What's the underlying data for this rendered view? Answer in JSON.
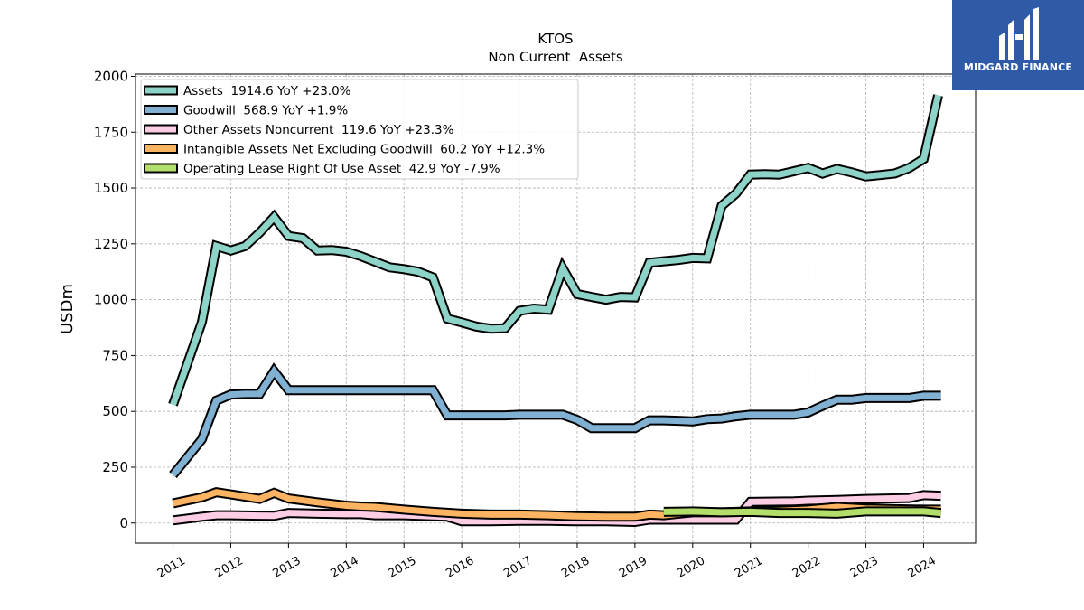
{
  "chart_data": {
    "type": "line",
    "title": "KTOS",
    "subtitle": "Non Current  Assets",
    "xlabel": "",
    "ylabel": "USDm",
    "xlim": [
      2010.35,
      2024.9
    ],
    "ylim": [
      -90,
      2010
    ],
    "yticks": [
      0,
      250,
      500,
      750,
      1000,
      1250,
      1500,
      1750,
      2000
    ],
    "xticks": [
      "2011",
      "2012",
      "2013",
      "2014",
      "2015",
      "2016",
      "2017",
      "2018",
      "2019",
      "2020",
      "2021",
      "2022",
      "2023",
      "2024"
    ],
    "grid": true,
    "legend_position": "top-left",
    "series": [
      {
        "name": "Assets",
        "legend_label": "Assets  1914.6 YoY +23.0%",
        "color": "#8dd3c7",
        "points": [
          [
            2011.0,
            530
          ],
          [
            2011.5,
            900
          ],
          [
            2011.75,
            1240
          ],
          [
            2012.0,
            1220
          ],
          [
            2012.25,
            1240
          ],
          [
            2012.5,
            1300
          ],
          [
            2012.75,
            1370
          ],
          [
            2013.0,
            1285
          ],
          [
            2013.25,
            1275
          ],
          [
            2013.5,
            1220
          ],
          [
            2013.75,
            1222
          ],
          [
            2014.0,
            1215
          ],
          [
            2014.25,
            1195
          ],
          [
            2014.5,
            1170
          ],
          [
            2014.75,
            1145
          ],
          [
            2015.0,
            1137
          ],
          [
            2015.25,
            1125
          ],
          [
            2015.5,
            1100
          ],
          [
            2015.75,
            915
          ],
          [
            2016.0,
            898
          ],
          [
            2016.25,
            880
          ],
          [
            2016.5,
            870
          ],
          [
            2016.75,
            872
          ],
          [
            2017.0,
            950
          ],
          [
            2017.25,
            960
          ],
          [
            2017.5,
            955
          ],
          [
            2017.75,
            1140
          ],
          [
            2018.0,
            1025
          ],
          [
            2018.25,
            1012
          ],
          [
            2018.5,
            1000
          ],
          [
            2018.75,
            1012
          ],
          [
            2019.0,
            1010
          ],
          [
            2019.25,
            1165
          ],
          [
            2019.5,
            1172
          ],
          [
            2019.75,
            1178
          ],
          [
            2020.0,
            1187
          ],
          [
            2020.25,
            1185
          ],
          [
            2020.5,
            1420
          ],
          [
            2020.75,
            1475
          ],
          [
            2021.0,
            1560
          ],
          [
            2021.25,
            1562
          ],
          [
            2021.5,
            1560
          ],
          [
            2021.75,
            1575
          ],
          [
            2022.0,
            1590
          ],
          [
            2022.25,
            1565
          ],
          [
            2022.5,
            1585
          ],
          [
            2022.75,
            1570
          ],
          [
            2023.0,
            1552
          ],
          [
            2023.25,
            1558
          ],
          [
            2023.5,
            1565
          ],
          [
            2023.75,
            1590
          ],
          [
            2024.0,
            1630
          ],
          [
            2024.25,
            1915
          ]
        ]
      },
      {
        "name": "Goodwill",
        "legend_label": "Goodwill  568.9 YoY +1.9%",
        "color": "#80b1d3",
        "points": [
          [
            2011.0,
            215
          ],
          [
            2011.5,
            375
          ],
          [
            2011.75,
            548
          ],
          [
            2012.0,
            575
          ],
          [
            2012.25,
            578
          ],
          [
            2012.5,
            578
          ],
          [
            2012.75,
            680
          ],
          [
            2013.0,
            595
          ],
          [
            2013.25,
            595
          ],
          [
            2013.5,
            595
          ],
          [
            2013.75,
            595
          ],
          [
            2014.0,
            595
          ],
          [
            2014.25,
            595
          ],
          [
            2014.5,
            595
          ],
          [
            2014.75,
            595
          ],
          [
            2015.0,
            595
          ],
          [
            2015.25,
            595
          ],
          [
            2015.5,
            595
          ],
          [
            2015.75,
            482
          ],
          [
            2016.0,
            482
          ],
          [
            2016.25,
            482
          ],
          [
            2016.5,
            482
          ],
          [
            2016.75,
            482
          ],
          [
            2017.0,
            485
          ],
          [
            2017.25,
            485
          ],
          [
            2017.5,
            485
          ],
          [
            2017.75,
            485
          ],
          [
            2018.0,
            462
          ],
          [
            2018.25,
            425
          ],
          [
            2018.5,
            425
          ],
          [
            2018.75,
            425
          ],
          [
            2019.0,
            425
          ],
          [
            2019.25,
            460
          ],
          [
            2019.5,
            460
          ],
          [
            2019.75,
            458
          ],
          [
            2020.0,
            455
          ],
          [
            2020.25,
            465
          ],
          [
            2020.5,
            468
          ],
          [
            2020.75,
            478
          ],
          [
            2021.0,
            485
          ],
          [
            2021.25,
            485
          ],
          [
            2021.5,
            485
          ],
          [
            2021.75,
            485
          ],
          [
            2022.0,
            495
          ],
          [
            2022.25,
            525
          ],
          [
            2022.5,
            552
          ],
          [
            2022.75,
            552
          ],
          [
            2023.0,
            560
          ],
          [
            2023.25,
            560
          ],
          [
            2023.5,
            560
          ],
          [
            2023.75,
            560
          ],
          [
            2024.0,
            570
          ],
          [
            2024.3,
            570
          ]
        ]
      },
      {
        "name": "Other Assets Noncurrent",
        "legend_label": "Other Assets Noncurrent  119.6 YoY +23.3%",
        "color": "#fccde5",
        "points": [
          [
            2011.0,
            12
          ],
          [
            2011.5,
            28
          ],
          [
            2011.75,
            35
          ],
          [
            2012.0,
            35
          ],
          [
            2012.5,
            33
          ],
          [
            2012.75,
            32
          ],
          [
            2013.0,
            45
          ],
          [
            2013.5,
            42
          ],
          [
            2014.0,
            40
          ],
          [
            2014.25,
            40
          ],
          [
            2014.5,
            35
          ],
          [
            2015.0,
            35
          ],
          [
            2015.5,
            30
          ],
          [
            2015.75,
            28
          ],
          [
            2016.0,
            8
          ],
          [
            2016.5,
            8
          ],
          [
            2017.0,
            10
          ],
          [
            2017.5,
            10
          ],
          [
            2018.0,
            8
          ],
          [
            2018.5,
            8
          ],
          [
            2019.0,
            5
          ],
          [
            2019.25,
            15
          ],
          [
            2019.5,
            15
          ],
          [
            2020.0,
            15
          ],
          [
            2020.5,
            15
          ],
          [
            2020.75,
            15
          ],
          [
            2021.0,
            95
          ],
          [
            2021.75,
            97
          ],
          [
            2022.0,
            100
          ],
          [
            2022.5,
            103
          ],
          [
            2023.0,
            108
          ],
          [
            2023.75,
            112
          ],
          [
            2024.0,
            125
          ],
          [
            2024.3,
            122
          ]
        ]
      },
      {
        "name": "Intangible Assets Net Excluding Goodwill",
        "legend_label": "Intangible Assets Net Excluding Goodwill  60.2 YoY +12.3%",
        "color": "#fdb462",
        "points": [
          [
            2011.0,
            88
          ],
          [
            2011.5,
            115
          ],
          [
            2011.75,
            138
          ],
          [
            2012.0,
            128
          ],
          [
            2012.25,
            118
          ],
          [
            2012.5,
            108
          ],
          [
            2012.75,
            135
          ],
          [
            2013.0,
            110
          ],
          [
            2013.5,
            93
          ],
          [
            2014.0,
            78
          ],
          [
            2014.25,
            74
          ],
          [
            2014.5,
            72
          ],
          [
            2015.0,
            60
          ],
          [
            2015.5,
            50
          ],
          [
            2016.0,
            42
          ],
          [
            2016.5,
            38
          ],
          [
            2017.0,
            38
          ],
          [
            2017.5,
            35
          ],
          [
            2018.0,
            30
          ],
          [
            2018.5,
            28
          ],
          [
            2019.0,
            28
          ],
          [
            2019.25,
            38
          ],
          [
            2019.5,
            35
          ],
          [
            2020.0,
            48
          ],
          [
            2020.5,
            48
          ],
          [
            2021.0,
            52
          ],
          [
            2021.5,
            55
          ],
          [
            2022.0,
            60
          ],
          [
            2022.5,
            72
          ],
          [
            2023.0,
            65
          ],
          [
            2023.5,
            62
          ],
          [
            2024.0,
            60
          ],
          [
            2024.3,
            60
          ]
        ]
      },
      {
        "name": "Operating Lease Right Of Use Asset",
        "legend_label": "Operating Lease Right Of Use Asset  42.9 YoY -7.9%",
        "color": "#b3de69",
        "points": [
          [
            2019.5,
            50
          ],
          [
            2020.0,
            52
          ],
          [
            2020.5,
            48
          ],
          [
            2021.0,
            50
          ],
          [
            2021.5,
            45
          ],
          [
            2022.0,
            45
          ],
          [
            2022.5,
            42
          ],
          [
            2023.0,
            52
          ],
          [
            2023.5,
            52
          ],
          [
            2024.0,
            52
          ],
          [
            2024.3,
            45
          ]
        ]
      }
    ]
  },
  "logo": {
    "text": "MIDGARD FINANCE",
    "color": "#2f5aa8"
  }
}
